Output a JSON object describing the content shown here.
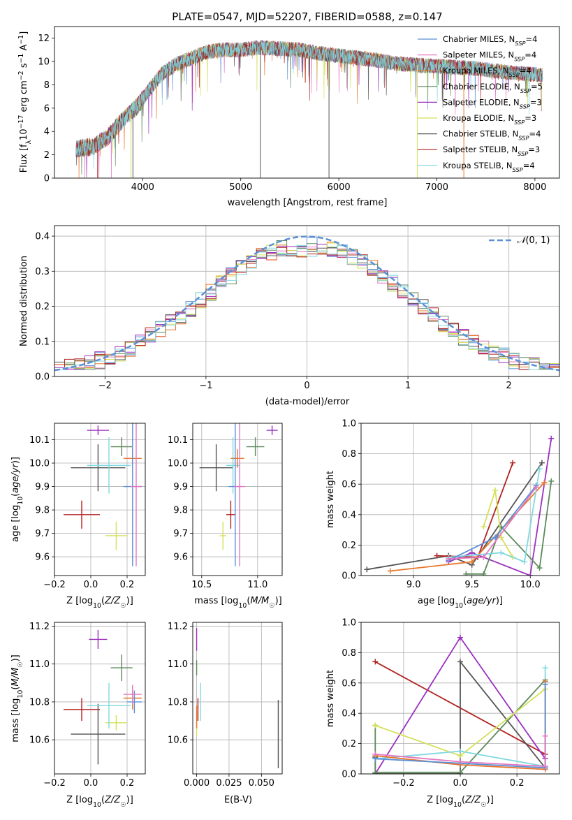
{
  "chart_data": [
    {
      "id": "spectrum",
      "type": "line",
      "title": "PLATE=0547, MJD=52207, FIBERID=0588, z=0.147",
      "xlabel": "wavelength [Angstrom, rest frame]",
      "ylabel": "Flux [f_λ 10^-17 erg cm^-2 s^-1 A^-1]",
      "xlim": [
        3100,
        8250
      ],
      "ylim": [
        0,
        13
      ],
      "xticks": [
        4000,
        5000,
        6000,
        7000,
        8000
      ],
      "yticks": [
        0,
        2,
        4,
        6,
        8,
        10,
        12
      ],
      "grid": false,
      "legend_position": "top-right",
      "continuum": {
        "x": [
          3320,
          3500,
          3650,
          3800,
          3950,
          4050,
          4200,
          4350,
          4500,
          4650,
          4800,
          5000,
          5200,
          5400,
          5600,
          5800,
          6000,
          6200,
          6400,
          6600,
          6800,
          7000,
          7200,
          7400,
          7600,
          7800,
          8000,
          8080
        ],
        "y": [
          2.5,
          2.7,
          3.6,
          5.0,
          6.2,
          7.4,
          9.0,
          9.8,
          10.3,
          10.8,
          11.0,
          11.0,
          11.2,
          11.1,
          11.0,
          10.7,
          10.5,
          10.3,
          10.1,
          9.8,
          9.7,
          9.6,
          9.5,
          9.4,
          9.2,
          9.0,
          8.9,
          8.8
        ]
      },
      "series": [
        {
          "name": "Chabrier MILES, N_SSP=4",
          "color": "#5a8fd6"
        },
        {
          "name": "Salpeter MILES, N_SSP=4",
          "color": "#e377c2"
        },
        {
          "name": "Kroupa MILES, N_SSP=4",
          "color": "#e8762b"
        },
        {
          "name": "Chabrier ELODIE, N_SSP=5",
          "color": "#5b8a5b"
        },
        {
          "name": "Salpeter ELODIE, N_SSP=3",
          "color": "#9b30c0"
        },
        {
          "name": "Kroupa ELODIE, N_SSP=3",
          "color": "#d4e157"
        },
        {
          "name": "Chabrier STELIB, N_SSP=4",
          "color": "#555555"
        },
        {
          "name": "Salpeter STELIB, N_SSP=3",
          "color": "#b22222"
        },
        {
          "name": "Kroupa STELIB, N_SSP=4",
          "color": "#80d8e0"
        }
      ]
    },
    {
      "id": "residuals",
      "type": "bar",
      "xlabel": "(data-model)/error",
      "ylabel": "Normed distribution",
      "xlim": [
        -2.5,
        2.5
      ],
      "ylim": [
        0,
        0.43
      ],
      "xticks": [
        -2,
        -1,
        0,
        1,
        2
      ],
      "yticks": [
        0.0,
        0.1,
        0.2,
        0.3,
        0.4
      ],
      "grid": true,
      "bin_width": 0.1,
      "legend": [
        {
          "name": "𝒩(0, 1)",
          "color": "#5a8fd6",
          "dashed": true
        }
      ],
      "legend_position": "top-right"
    },
    {
      "id": "age-vs-Z",
      "type": "scatter",
      "xlabel": "Z [log10(Z/Z☉)]",
      "ylabel": "age [log10(age/yr)]",
      "xlim": [
        -0.2,
        0.3
      ],
      "ylim": [
        9.52,
        10.17
      ],
      "xticks": [
        -0.2,
        0.0,
        0.2
      ],
      "yticks": [
        9.6,
        9.7,
        9.8,
        9.9,
        10.0,
        10.1
      ],
      "grid": true,
      "points": [
        {
          "c": "#b22222",
          "x": -0.05,
          "dx": 0.1,
          "y": 9.78,
          "dy": 0.06
        },
        {
          "c": "#555555",
          "x": 0.04,
          "dx": 0.15,
          "y": 9.98,
          "dy": 0.1
        },
        {
          "c": "#9b30c0",
          "x": 0.04,
          "dx": 0.06,
          "y": 10.14,
          "dy": 0.02
        },
        {
          "c": "#5b8a5b",
          "x": 0.17,
          "dx": 0.06,
          "y": 10.07,
          "dy": 0.04
        },
        {
          "c": "#d4e157",
          "x": 0.14,
          "dx": 0.06,
          "y": 9.69,
          "dy": 0.06
        },
        {
          "c": "#80d8e0",
          "x": 0.1,
          "dx": 0.12,
          "y": 9.99,
          "dy": 0.12
        },
        {
          "c": "#e8762b",
          "x": 0.23,
          "dx": 0.05,
          "y": 10.02,
          "dy": 0.04
        },
        {
          "c": "#5a8fd6",
          "x": 0.23,
          "dx": 0.05,
          "y": 9.9,
          "dy": 0.34
        },
        {
          "c": "#e377c2",
          "x": 0.25,
          "dx": 0.03,
          "y": 9.9,
          "dy": 0.34
        }
      ]
    },
    {
      "id": "age-vs-mass",
      "type": "scatter",
      "xlabel": "mass [log10(M/M☉)]",
      "ylabel": "",
      "xlim": [
        10.42,
        11.22
      ],
      "ylim": [
        9.52,
        10.17
      ],
      "xticks": [
        10.5,
        11.0
      ],
      "yticks": [
        9.6,
        9.7,
        9.8,
        9.9,
        10.0,
        10.1
      ],
      "grid": true,
      "points": [
        {
          "c": "#555555",
          "x": 10.63,
          "dx": 0.15,
          "y": 9.98,
          "dy": 0.1
        },
        {
          "c": "#b22222",
          "x": 10.76,
          "dx": 0.04,
          "y": 9.78,
          "dy": 0.06
        },
        {
          "c": "#9b30c0",
          "x": 11.13,
          "dx": 0.05,
          "y": 10.14,
          "dy": 0.02
        },
        {
          "c": "#5b8a5b",
          "x": 10.98,
          "dx": 0.08,
          "y": 10.07,
          "dy": 0.04
        },
        {
          "c": "#d4e157",
          "x": 10.69,
          "dx": 0.03,
          "y": 9.69,
          "dy": 0.06
        },
        {
          "c": "#80d8e0",
          "x": 10.78,
          "dx": 0.06,
          "y": 9.99,
          "dy": 0.12
        },
        {
          "c": "#e8762b",
          "x": 10.82,
          "dx": 0.06,
          "y": 10.02,
          "dy": 0.04
        },
        {
          "c": "#5a8fd6",
          "x": 10.8,
          "dx": 0.06,
          "y": 9.9,
          "dy": 0.34
        },
        {
          "c": "#e377c2",
          "x": 10.84,
          "dx": 0.05,
          "y": 9.9,
          "dy": 0.34
        }
      ]
    },
    {
      "id": "weight-vs-age",
      "type": "line",
      "xlabel": "age [log10(age/yr)]",
      "ylabel": "mass weight",
      "xlim": [
        8.55,
        10.25
      ],
      "ylim": [
        0,
        1.0
      ],
      "xticks": [
        9.0,
        9.5,
        10.0
      ],
      "yticks": [
        0.0,
        0.2,
        0.4,
        0.6,
        0.8,
        1.0
      ],
      "grid": true,
      "series": [
        {
          "c": "#555555",
          "x": [
            8.6,
            9.3,
            9.5,
            10.1
          ],
          "y": [
            0.04,
            0.13,
            0.07,
            0.74
          ]
        },
        {
          "c": "#b22222",
          "x": [
            9.2,
            9.55,
            9.85
          ],
          "y": [
            0.13,
            0.12,
            0.74
          ]
        },
        {
          "c": "#9b30c0",
          "x": [
            9.3,
            9.5,
            10.0,
            10.18
          ],
          "y": [
            0.09,
            0.15,
            0.0,
            0.9
          ]
        },
        {
          "c": "#e8762b",
          "x": [
            8.8,
            9.5,
            10.12
          ],
          "y": [
            0.03,
            0.09,
            0.61
          ]
        },
        {
          "c": "#5b8a5b",
          "x": [
            9.45,
            9.6,
            9.75,
            10.08,
            10.18
          ],
          "y": [
            0.01,
            0.01,
            0.32,
            0.05,
            0.62
          ]
        },
        {
          "c": "#d4e157",
          "x": [
            9.6,
            9.7,
            9.75,
            9.85
          ],
          "y": [
            0.32,
            0.56,
            0.25,
            0.12
          ]
        },
        {
          "c": "#80d8e0",
          "x": [
            9.3,
            9.75,
            9.95,
            10.08
          ],
          "y": [
            0.12,
            0.15,
            0.09,
            0.7
          ]
        },
        {
          "c": "#5a8fd6",
          "x": [
            9.3,
            9.7,
            10.05
          ],
          "y": [
            0.1,
            0.25,
            0.59
          ]
        },
        {
          "c": "#e377c2",
          "x": [
            9.3,
            9.6,
            10.05
          ],
          "y": [
            0.11,
            0.12,
            0.58
          ]
        }
      ]
    },
    {
      "id": "mass-vs-Z",
      "type": "scatter",
      "xlabel": "Z [log10(Z/Z☉)]",
      "ylabel": "mass [log10(M/M☉)]",
      "xlim": [
        -0.2,
        0.3
      ],
      "ylim": [
        10.42,
        11.22
      ],
      "xticks": [
        -0.2,
        0.0,
        0.2
      ],
      "yticks": [
        10.6,
        10.8,
        11.0,
        11.2
      ],
      "grid": true,
      "points": [
        {
          "c": "#b22222",
          "x": -0.05,
          "dx": 0.1,
          "y": 10.76,
          "dy": 0.06
        },
        {
          "c": "#555555",
          "x": 0.04,
          "dx": 0.15,
          "y": 10.63,
          "dy": 0.16
        },
        {
          "c": "#9b30c0",
          "x": 0.04,
          "dx": 0.05,
          "y": 11.13,
          "dy": 0.05
        },
        {
          "c": "#5b8a5b",
          "x": 0.17,
          "dx": 0.06,
          "y": 10.98,
          "dy": 0.07
        },
        {
          "c": "#d4e157",
          "x": 0.14,
          "dx": 0.06,
          "y": 10.69,
          "dy": 0.04
        },
        {
          "c": "#80d8e0",
          "x": 0.1,
          "dx": 0.12,
          "y": 10.78,
          "dy": 0.12
        },
        {
          "c": "#e8762b",
          "x": 0.23,
          "dx": 0.05,
          "y": 10.82,
          "dy": 0.06
        },
        {
          "c": "#5a8fd6",
          "x": 0.24,
          "dx": 0.04,
          "y": 10.8,
          "dy": 0.06
        },
        {
          "c": "#e377c2",
          "x": 0.23,
          "dx": 0.05,
          "y": 10.84,
          "dy": 0.05
        }
      ]
    },
    {
      "id": "mass-vs-EBV",
      "type": "scatter",
      "xlabel": "E(B-V)",
      "ylabel": "",
      "xlim": [
        -0.003,
        0.066
      ],
      "ylim": [
        10.42,
        11.22
      ],
      "xticks": [
        0.0,
        0.025,
        0.05
      ],
      "yticks": [
        10.6,
        10.8,
        11.0,
        11.2
      ],
      "grid": true,
      "points": [
        {
          "c": "#555555",
          "x": 0.063,
          "dx": 0.0,
          "y": 10.63,
          "dy": 0.18
        },
        {
          "c": "#9b30c0",
          "x": 0.0,
          "dx": 0.0,
          "y": 11.13,
          "dy": 0.06
        },
        {
          "c": "#5b8a5b",
          "x": 0.0,
          "dx": 0.0,
          "y": 10.98,
          "dy": 0.04
        },
        {
          "c": "#80d8e0",
          "x": 0.003,
          "dx": 0.0,
          "y": 10.8,
          "dy": 0.1
        },
        {
          "c": "#b22222",
          "x": 0.001,
          "dx": 0.0,
          "y": 10.76,
          "dy": 0.06
        },
        {
          "c": "#d4e157",
          "x": 0.0,
          "dx": 0.0,
          "y": 10.68,
          "dy": 0.06
        },
        {
          "c": "#e8762b",
          "x": 0.0,
          "dx": 0.0,
          "y": 10.72,
          "dy": 0.06
        }
      ]
    },
    {
      "id": "weight-vs-Z",
      "type": "line",
      "xlabel": "Z [log10(Z/Z☉)]",
      "ylabel": "mass weight",
      "xlim": [
        -0.35,
        0.35
      ],
      "ylim": [
        0,
        1.0
      ],
      "xticks": [
        -0.2,
        0.0,
        0.2
      ],
      "yticks": [
        0.0,
        0.2,
        0.4,
        0.6,
        0.8,
        1.0
      ],
      "grid": true,
      "series": [
        {
          "c": "#b22222",
          "x": [
            -0.3,
            0.3
          ],
          "y": [
            0.74,
            0.13
          ]
        },
        {
          "c": "#9b30c0",
          "x": [
            -0.3,
            0.0,
            0.3
          ],
          "y": [
            0.0,
            0.9,
            0.1
          ]
        },
        {
          "c": "#555555",
          "x": [
            -0.3,
            -0.3,
            0.0,
            0.0,
            0.3
          ],
          "y": [
            0.11,
            0.0,
            0.0,
            0.74,
            0.04
          ]
        },
        {
          "c": "#5b8a5b",
          "x": [
            -0.3,
            -0.3,
            0.0,
            0.3
          ],
          "y": [
            0.32,
            0.01,
            0.01,
            0.62
          ]
        },
        {
          "c": "#d4e157",
          "x": [
            -0.3,
            0.0,
            0.3
          ],
          "y": [
            0.32,
            0.12,
            0.56
          ]
        },
        {
          "c": "#80d8e0",
          "x": [
            -0.3,
            0.0,
            0.3,
            0.3
          ],
          "y": [
            0.1,
            0.15,
            0.05,
            0.7
          ]
        },
        {
          "c": "#e8762b",
          "x": [
            -0.3,
            0.0,
            0.3,
            0.3
          ],
          "y": [
            0.12,
            0.06,
            0.03,
            0.61
          ]
        },
        {
          "c": "#5a8fd6",
          "x": [
            -0.3,
            0.0,
            0.3,
            0.3
          ],
          "y": [
            0.1,
            0.07,
            0.04,
            0.59
          ]
        },
        {
          "c": "#e377c2",
          "x": [
            -0.3,
            0.0,
            0.3,
            0.3
          ],
          "y": [
            0.13,
            0.08,
            0.05,
            0.25
          ]
        }
      ]
    }
  ]
}
